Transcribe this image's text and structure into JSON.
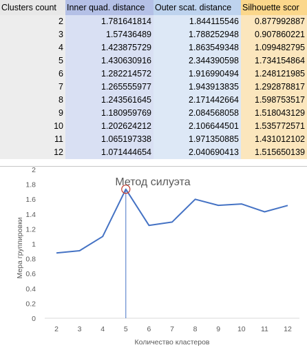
{
  "table": {
    "headers": [
      "Clusters count",
      "Inner quad. distance",
      "Outer scat. distance",
      "Silhouette scor"
    ],
    "rows": [
      [
        "2",
        "1.781641814",
        "1.844115546",
        "0.877992887"
      ],
      [
        "3",
        "1.57436489",
        "1.788252948",
        "0.907860221"
      ],
      [
        "4",
        "1.423875729",
        "1.863549348",
        "1.099482795"
      ],
      [
        "5",
        "1.430630916",
        "2.344390598",
        "1.734154864"
      ],
      [
        "6",
        "1.282214572",
        "1.916990494",
        "1.248121985"
      ],
      [
        "7",
        "1.265555977",
        "1.943913835",
        "1.292878817"
      ],
      [
        "8",
        "1.243561645",
        "2.171442664",
        "1.598753517"
      ],
      [
        "9",
        "1.180959769",
        "2.084568058",
        "1.518043129"
      ],
      [
        "10",
        "1.202624212",
        "2.106644501",
        "1.535772571"
      ],
      [
        "11",
        "1.065197338",
        "1.971350885",
        "1.431012102"
      ],
      [
        "12",
        "1.071444654",
        "2.040690413",
        "1.515650139"
      ]
    ]
  },
  "colors": {
    "line": "#4472c4",
    "marker_ring": "#c0392b",
    "axis_text": "#595959",
    "gridline": "#d9d9d9"
  },
  "chart_data": {
    "type": "line",
    "title": "Метод силуэта",
    "xlabel": "Количество кластеров",
    "ylabel": "Мера группировки",
    "categories": [
      "2",
      "3",
      "4",
      "5",
      "6",
      "7",
      "8",
      "9",
      "10",
      "11",
      "12"
    ],
    "series": [
      {
        "values": [
          0.877992887,
          0.907860221,
          1.099482795,
          1.734154864,
          1.248121985,
          1.292878817,
          1.598753517,
          1.518043129,
          1.535772571,
          1.431012102,
          1.515650139
        ]
      }
    ],
    "ylim": [
      0,
      2
    ],
    "yticks": [
      "0",
      "0.2",
      "0.4",
      "0.6",
      "0.8",
      "1",
      "1.2",
      "1.4",
      "1.6",
      "1.8",
      "2"
    ],
    "highlight": {
      "category": "5",
      "marker": "circle",
      "guide": "vertical-line"
    },
    "grid": false,
    "legend": "none"
  }
}
